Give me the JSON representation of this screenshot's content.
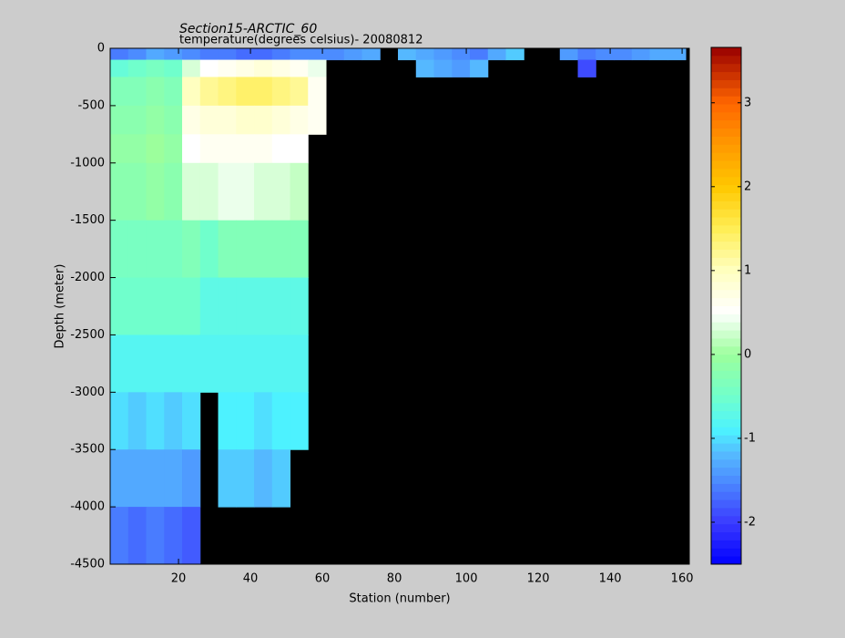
{
  "chart_data": {
    "type": "heatmap",
    "title": "Section15-ARCTIC_60",
    "subtitle": "temperature(degrees celsius)- 20080812",
    "x_label": "Station (number)",
    "y_label": "Depth (meter)",
    "xlim": [
      1,
      162
    ],
    "ylim": [
      -4500,
      0
    ],
    "xticks": [
      20,
      40,
      60,
      80,
      100,
      120,
      140,
      160
    ],
    "yticks": [
      0,
      -500,
      -1000,
      -1500,
      -2000,
      -2500,
      -3000,
      -3500,
      -4000,
      -4500
    ],
    "x_bins": [
      1,
      6,
      11,
      16,
      21,
      26,
      31,
      36,
      41,
      46,
      51,
      56,
      61,
      66,
      71,
      76,
      81,
      86,
      91,
      96,
      101,
      106,
      111,
      116,
      121,
      126,
      131,
      136,
      141,
      146,
      151,
      156,
      161
    ],
    "y_bins": [
      0,
      -100,
      -250,
      -500,
      -750,
      -1000,
      -1500,
      -2000,
      -2500,
      -3000,
      -3500,
      -4000,
      -4500
    ],
    "values": [
      [
        -1.6,
        -1.5,
        -1.3,
        -1.4,
        -1.5,
        -1.6,
        -1.6,
        -1.7,
        -1.7,
        -1.6,
        -1.5,
        -1.5,
        -1.5,
        -1.4,
        -1.3,
        null,
        -1.2,
        -1.3,
        -1.4,
        -1.5,
        -1.6,
        -1.3,
        -1.1,
        null,
        null,
        -1.4,
        -1.6,
        -1.5,
        -1.5,
        -1.4,
        -1.3,
        -1.3
      ],
      [
        -0.6,
        -0.5,
        -0.4,
        -0.5,
        0.3,
        0.5,
        0.6,
        0.7,
        0.8,
        0.7,
        0.6,
        0.4,
        null,
        null,
        null,
        null,
        null,
        -1.2,
        -1.3,
        -1.4,
        -1.2,
        null,
        null,
        null,
        null,
        null,
        -1.9,
        null,
        null,
        null,
        null,
        null
      ],
      [
        -0.3,
        -0.3,
        -0.2,
        -0.3,
        1.0,
        1.2,
        1.3,
        1.4,
        1.4,
        1.3,
        1.2,
        0.6,
        null,
        null,
        null,
        null,
        null,
        null,
        null,
        null,
        null,
        null,
        null,
        null,
        null,
        null,
        null,
        null,
        null,
        null,
        null,
        null
      ],
      [
        -0.2,
        -0.2,
        -0.1,
        -0.2,
        0.7,
        0.8,
        0.8,
        0.9,
        0.9,
        0.8,
        0.7,
        0.6,
        null,
        null,
        null,
        null,
        null,
        null,
        null,
        null,
        null,
        null,
        null,
        null,
        null,
        null,
        null,
        null,
        null,
        null,
        null,
        null
      ],
      [
        -0.1,
        -0.1,
        0,
        -0.1,
        0.5,
        0.6,
        0.6,
        0.6,
        0.6,
        0.5,
        0.5,
        null,
        null,
        null,
        null,
        null,
        null,
        null,
        null,
        null,
        null,
        null,
        null,
        null,
        null,
        null,
        null,
        null,
        null,
        null,
        null,
        null
      ],
      [
        -0.2,
        -0.2,
        -0.1,
        -0.2,
        0.3,
        0.3,
        0.4,
        0.4,
        0.3,
        0.3,
        0.2,
        null,
        null,
        null,
        null,
        null,
        null,
        null,
        null,
        null,
        null,
        null,
        null,
        null,
        null,
        null,
        null,
        null,
        null,
        null,
        null,
        null
      ],
      [
        -0.4,
        -0.4,
        -0.4,
        -0.4,
        -0.3,
        -0.5,
        -0.3,
        -0.3,
        -0.3,
        -0.3,
        -0.3,
        null,
        null,
        null,
        null,
        null,
        null,
        null,
        null,
        null,
        null,
        null,
        null,
        null,
        null,
        null,
        null,
        null,
        null,
        null,
        null,
        null
      ],
      [
        -0.5,
        -0.5,
        -0.5,
        -0.5,
        -0.5,
        -0.7,
        -0.7,
        -0.7,
        -0.7,
        -0.7,
        -0.7,
        null,
        null,
        null,
        null,
        null,
        null,
        null,
        null,
        null,
        null,
        null,
        null,
        null,
        null,
        null,
        null,
        null,
        null,
        null,
        null,
        null
      ],
      [
        -0.8,
        -0.8,
        -0.8,
        -0.8,
        -0.8,
        -0.8,
        -0.8,
        -0.8,
        -0.8,
        -0.8,
        -0.8,
        null,
        null,
        null,
        null,
        null,
        null,
        null,
        null,
        null,
        null,
        null,
        null,
        null,
        null,
        null,
        null,
        null,
        null,
        null,
        null,
        null
      ],
      [
        -1.0,
        -1.1,
        -1.0,
        -1.1,
        -1.0,
        null,
        -0.9,
        -0.9,
        -1.0,
        -0.9,
        -0.9,
        null,
        null,
        null,
        null,
        null,
        null,
        null,
        null,
        null,
        null,
        null,
        null,
        null,
        null,
        null,
        null,
        null,
        null,
        null,
        null,
        null
      ],
      [
        -1.3,
        -1.3,
        -1.3,
        -1.3,
        -1.4,
        null,
        -1.1,
        -1.1,
        -1.2,
        -1.1,
        null,
        null,
        null,
        null,
        null,
        null,
        null,
        null,
        null,
        null,
        null,
        null,
        null,
        null,
        null,
        null,
        null,
        null,
        null,
        null,
        null,
        null
      ],
      [
        -1.6,
        -1.7,
        -1.6,
        -1.7,
        -1.8,
        null,
        null,
        null,
        null,
        null,
        null,
        null,
        null,
        null,
        null,
        null,
        null,
        null,
        null,
        null,
        null,
        null,
        null,
        null,
        null,
        null,
        null,
        null,
        null,
        null,
        null,
        null
      ]
    ],
    "nan_color": "#000000",
    "clim": [
      -2.5,
      3.66
    ],
    "cticks": [
      3,
      2,
      1,
      0,
      -1,
      -2
    ],
    "colormap": [
      [
        -2.5,
        "#0000ff"
      ],
      [
        -2,
        "#3b3bff"
      ],
      [
        -1.5,
        "#4c8cff"
      ],
      [
        -1.2,
        "#55b8ff"
      ],
      [
        -0.9,
        "#4df2ff"
      ],
      [
        -0.5,
        "#70ffcc"
      ],
      [
        0,
        "#9cff9c"
      ],
      [
        0.5,
        "#ffffff"
      ],
      [
        1,
        "#ffffc0"
      ],
      [
        1.5,
        "#ffee55"
      ],
      [
        2,
        "#ffc800"
      ],
      [
        2.5,
        "#ff9900"
      ],
      [
        3,
        "#ff6600"
      ],
      [
        3.66,
        "#990000"
      ]
    ]
  }
}
